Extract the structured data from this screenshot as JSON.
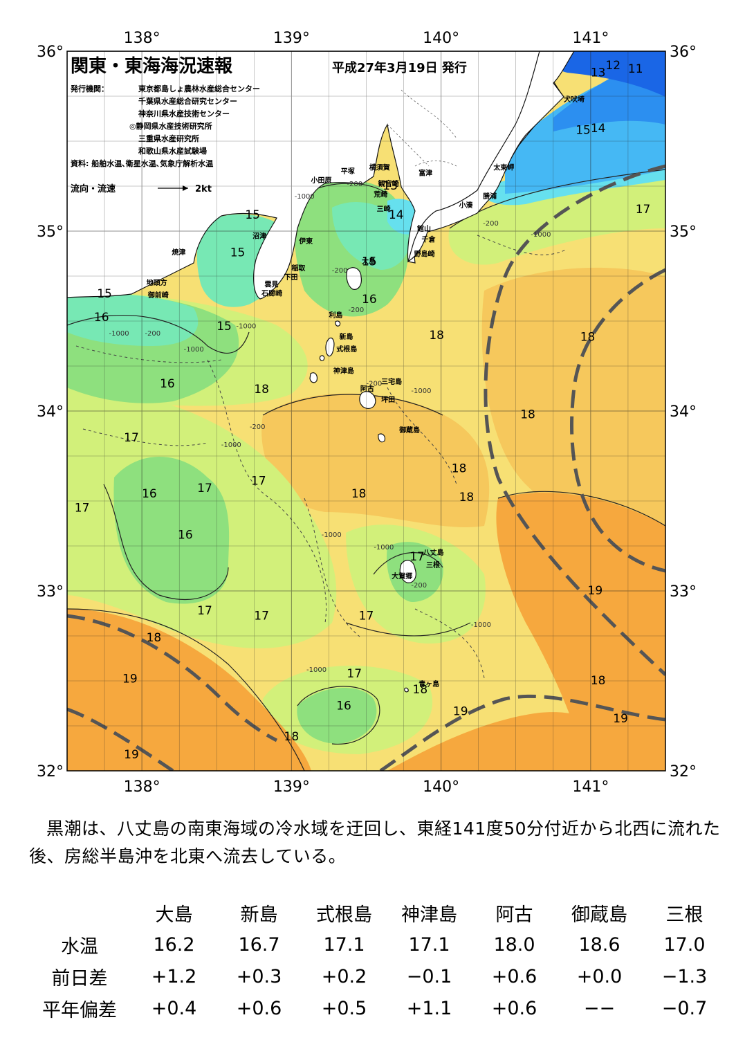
{
  "header": {
    "title": "関東・東海海況速報",
    "date": "平成27年3月19日 発行",
    "issuer_label": "発行機関：",
    "issuers": [
      "東京都島しょ農林水産総合センター",
      "千葉県水産総合研究センター",
      "神奈川県水産技術センター",
      "◎静岡県水産技術研究所",
      "三重県水産研究所",
      "和歌山県水産試験場"
    ],
    "source": "資料: 船舶水温､衛星水温､気象庁解析水温",
    "flow_label": "流向・流速",
    "flow_scale": "2kt"
  },
  "map": {
    "lon_labels": [
      "138°",
      "139°",
      "140°",
      "141°"
    ],
    "lat_labels": [
      "36°",
      "35°",
      "34°",
      "33°",
      "32°"
    ],
    "colors": {
      "t11": "#1a66e6",
      "t12": "#2c8ff0",
      "t13": "#45b8f4",
      "t14": "#66e0ee",
      "t15": "#77e8b4",
      "t16": "#8ee07e",
      "t17": "#d2f07a",
      "t18": "#f7e074",
      "t18b": "#f6c85c",
      "t19": "#f6a83e",
      "land": "#ffffff",
      "kuroshio": "#555555"
    },
    "places": [
      {
        "name": "犬吠埼",
        "lon": 140.82,
        "lat": 35.72
      },
      {
        "name": "太東岬",
        "lon": 140.35,
        "lat": 35.34
      },
      {
        "name": "勝浦",
        "lon": 140.28,
        "lat": 35.18
      },
      {
        "name": "小湊",
        "lon": 140.12,
        "lat": 35.13
      },
      {
        "name": "富津",
        "lon": 139.85,
        "lat": 35.31
      },
      {
        "name": "横須賀",
        "lon": 139.52,
        "lat": 35.34
      },
      {
        "name": "平塚",
        "lon": 139.33,
        "lat": 35.32
      },
      {
        "name": "観音崎",
        "lon": 139.58,
        "lat": 35.25
      },
      {
        "name": "荒崎",
        "lon": 139.55,
        "lat": 35.19
      },
      {
        "name": "三崎",
        "lon": 139.57,
        "lat": 35.11
      },
      {
        "name": "館山",
        "lon": 139.84,
        "lat": 35.0
      },
      {
        "name": "千倉",
        "lon": 139.87,
        "lat": 34.94
      },
      {
        "name": "野島崎",
        "lon": 139.82,
        "lat": 34.86
      },
      {
        "name": "小田原",
        "lon": 139.13,
        "lat": 35.27
      },
      {
        "name": "沼津",
        "lon": 138.74,
        "lat": 34.96
      },
      {
        "name": "伊東",
        "lon": 139.05,
        "lat": 34.93
      },
      {
        "name": "焼津",
        "lon": 138.2,
        "lat": 34.87
      },
      {
        "name": "稲取",
        "lon": 139.0,
        "lat": 34.78
      },
      {
        "name": "下田",
        "lon": 138.95,
        "lat": 34.73
      },
      {
        "name": "雲見",
        "lon": 138.82,
        "lat": 34.69
      },
      {
        "name": "石廊崎",
        "lon": 138.8,
        "lat": 34.64
      },
      {
        "name": "地頭方",
        "lon": 138.03,
        "lat": 34.7
      },
      {
        "name": "御前崎",
        "lon": 138.04,
        "lat": 34.63
      },
      {
        "name": "大島",
        "lon": 139.47,
        "lat": 34.82
      },
      {
        "name": "利島",
        "lon": 139.25,
        "lat": 34.52
      },
      {
        "name": "新島",
        "lon": 139.32,
        "lat": 34.4
      },
      {
        "name": "式根島",
        "lon": 139.3,
        "lat": 34.33
      },
      {
        "name": "神津島",
        "lon": 139.28,
        "lat": 34.21
      },
      {
        "name": "三宅島",
        "lon": 139.6,
        "lat": 34.15
      },
      {
        "name": "阿古",
        "lon": 139.46,
        "lat": 34.11
      },
      {
        "name": "坪田",
        "lon": 139.6,
        "lat": 34.05
      },
      {
        "name": "御蔵島",
        "lon": 139.72,
        "lat": 33.88
      },
      {
        "name": "八丈島",
        "lon": 139.88,
        "lat": 33.2
      },
      {
        "name": "三根",
        "lon": 139.9,
        "lat": 33.13
      },
      {
        "name": "大賀郷",
        "lon": 139.67,
        "lat": 33.07
      },
      {
        "name": "青ヶ島",
        "lon": 139.85,
        "lat": 32.47
      }
    ],
    "temp_labels": [
      {
        "t": "11",
        "lon": 141.3,
        "lat": 35.88
      },
      {
        "t": "12",
        "lon": 141.15,
        "lat": 35.9
      },
      {
        "t": "13",
        "lon": 141.05,
        "lat": 35.86
      },
      {
        "t": "14",
        "lon": 141.05,
        "lat": 35.55
      },
      {
        "t": "15",
        "lon": 140.95,
        "lat": 35.54
      },
      {
        "t": "13",
        "lon": 139.66,
        "lat": 35.23
      },
      {
        "t": "14",
        "lon": 139.7,
        "lat": 35.07
      },
      {
        "t": "15",
        "lon": 138.74,
        "lat": 35.07
      },
      {
        "t": "15",
        "lon": 138.64,
        "lat": 34.86
      },
      {
        "t": "15",
        "lon": 137.75,
        "lat": 34.63
      },
      {
        "t": "16",
        "lon": 137.73,
        "lat": 34.5
      },
      {
        "t": "15",
        "lon": 138.55,
        "lat": 34.45
      },
      {
        "t": "15",
        "lon": 139.52,
        "lat": 34.81
      },
      {
        "t": "16",
        "lon": 139.52,
        "lat": 34.6
      },
      {
        "t": "16",
        "lon": 138.17,
        "lat": 34.13
      },
      {
        "t": "18",
        "lon": 138.8,
        "lat": 34.1
      },
      {
        "t": "18",
        "lon": 139.97,
        "lat": 34.4
      },
      {
        "t": "18",
        "lon": 140.98,
        "lat": 34.39
      },
      {
        "t": "18",
        "lon": 140.58,
        "lat": 33.96
      },
      {
        "t": "17",
        "lon": 137.93,
        "lat": 33.83
      },
      {
        "t": "18",
        "lon": 140.12,
        "lat": 33.66
      },
      {
        "t": "18",
        "lon": 139.45,
        "lat": 33.52
      },
      {
        "t": "18",
        "lon": 140.17,
        "lat": 33.5
      },
      {
        "t": "16",
        "lon": 138.05,
        "lat": 33.52
      },
      {
        "t": "17",
        "lon": 138.42,
        "lat": 33.55
      },
      {
        "t": "17",
        "lon": 138.78,
        "lat": 33.59
      },
      {
        "t": "17",
        "lon": 137.6,
        "lat": 33.44
      },
      {
        "t": "16",
        "lon": 138.29,
        "lat": 33.29
      },
      {
        "t": "17",
        "lon": 139.84,
        "lat": 33.17
      },
      {
        "t": "19",
        "lon": 141.03,
        "lat": 32.98
      },
      {
        "t": "17",
        "lon": 138.42,
        "lat": 32.87
      },
      {
        "t": "17",
        "lon": 138.8,
        "lat": 32.84
      },
      {
        "t": "17",
        "lon": 139.5,
        "lat": 32.84
      },
      {
        "t": "18",
        "lon": 138.08,
        "lat": 32.72
      },
      {
        "t": "19",
        "lon": 137.92,
        "lat": 32.49
      },
      {
        "t": "17",
        "lon": 139.42,
        "lat": 32.52
      },
      {
        "t": "18",
        "lon": 141.05,
        "lat": 32.48
      },
      {
        "t": "18",
        "lon": 139.86,
        "lat": 32.43
      },
      {
        "t": "16",
        "lon": 139.35,
        "lat": 32.34
      },
      {
        "t": "19",
        "lon": 140.13,
        "lat": 32.31
      },
      {
        "t": "19",
        "lon": 141.2,
        "lat": 32.27
      },
      {
        "t": "18",
        "lon": 139.0,
        "lat": 32.17
      },
      {
        "t": "19",
        "lon": 137.93,
        "lat": 32.07
      },
      {
        "t": "17",
        "lon": 141.35,
        "lat": 35.1
      }
    ],
    "depth_labels": [
      {
        "t": "-1000",
        "lon": 139.02,
        "lat": 35.18
      },
      {
        "t": "-200",
        "lon": 139.37,
        "lat": 35.25
      },
      {
        "t": "-1000",
        "lon": 137.78,
        "lat": 34.42
      },
      {
        "t": "-200",
        "lon": 138.02,
        "lat": 34.42
      },
      {
        "t": "-1000",
        "lon": 138.28,
        "lat": 34.33
      },
      {
        "t": "-1000",
        "lon": 138.63,
        "lat": 34.46
      },
      {
        "t": "-200",
        "lon": 139.27,
        "lat": 34.77
      },
      {
        "t": "-200",
        "lon": 139.38,
        "lat": 34.55
      },
      {
        "t": "-200",
        "lon": 139.5,
        "lat": 34.14
      },
      {
        "t": "-1000",
        "lon": 139.8,
        "lat": 34.1
      },
      {
        "t": "-200",
        "lon": 138.72,
        "lat": 33.9
      },
      {
        "t": "-1000",
        "lon": 138.53,
        "lat": 33.8
      },
      {
        "t": "-1000",
        "lon": 139.2,
        "lat": 33.3
      },
      {
        "t": "-1000",
        "lon": 139.55,
        "lat": 33.23
      },
      {
        "t": "-200",
        "lon": 139.8,
        "lat": 33.02
      },
      {
        "t": "-1000",
        "lon": 140.2,
        "lat": 32.8
      },
      {
        "t": "-1000",
        "lon": 139.1,
        "lat": 32.55
      },
      {
        "t": "-200",
        "lon": 140.28,
        "lat": 35.03
      },
      {
        "t": "-1000",
        "lon": 140.6,
        "lat": 34.97
      }
    ]
  },
  "summary": "黒潮は、八丈島の南東海域の冷水域を迂回し、東経141度50分付近から北西に流れた後、房総半島沖を北東へ流去している。",
  "stats": {
    "columns": [
      "大島",
      "新島",
      "式根島",
      "神津島",
      "阿古",
      "御蔵島",
      "三根"
    ],
    "rows": [
      {
        "label": "水温",
        "values": [
          "16.2",
          "16.7",
          "17.1",
          "17.1",
          "18.0",
          "18.6",
          "17.0"
        ]
      },
      {
        "label": "前日差",
        "values": [
          "+1.2",
          "+0.3",
          "+0.2",
          "−0.1",
          "+0.6",
          "+0.0",
          "−1.3"
        ]
      },
      {
        "label": "平年偏差",
        "values": [
          "+0.4",
          "+0.6",
          "+0.5",
          "+1.1",
          "+0.6",
          "−−",
          "−0.7"
        ]
      }
    ]
  }
}
